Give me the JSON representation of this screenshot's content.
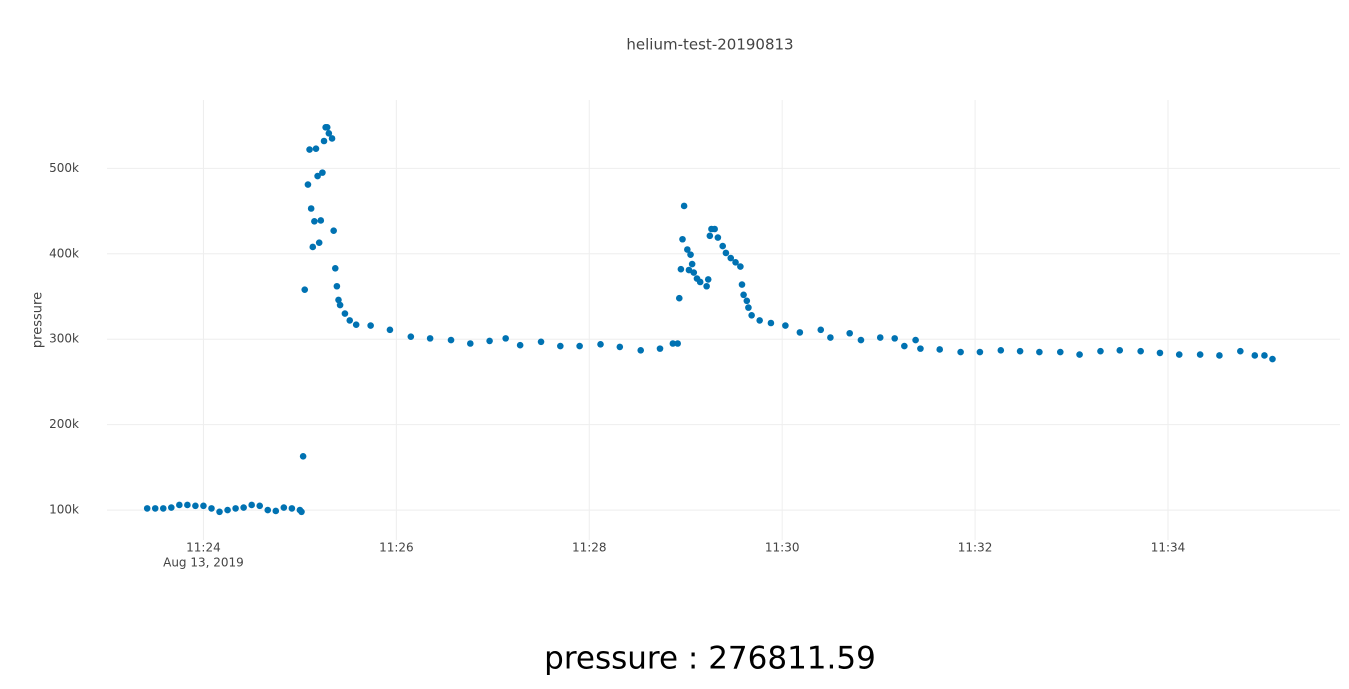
{
  "chart_data": {
    "type": "scatter",
    "title": "helium-test-20190813",
    "y_label": "pressure",
    "x_date": "Aug 13, 2019",
    "annotation": "pressure : 276811.59",
    "color": "#0072b2",
    "grid": true,
    "xlim": [
      "11:23:00",
      "11:35:47"
    ],
    "xticks": [
      "11:24",
      "11:26",
      "11:28",
      "11:30",
      "11:32",
      "11:34"
    ],
    "ylim": [
      65000,
      580000
    ],
    "yticks": [
      {
        "value": 100000,
        "label": "100k"
      },
      {
        "value": 200000,
        "label": "200k"
      },
      {
        "value": 300000,
        "label": "300k"
      },
      {
        "value": 400000,
        "label": "400k"
      },
      {
        "value": 500000,
        "label": "500k"
      }
    ],
    "x": [
      "11:23:25",
      "11:23:30",
      "11:23:35",
      "11:23:40",
      "11:23:45",
      "11:23:50",
      "11:23:55",
      "11:24:00",
      "11:24:05",
      "11:24:10",
      "11:24:15",
      "11:24:20",
      "11:24:25",
      "11:24:30",
      "11:24:35",
      "11:24:40",
      "11:24:45",
      "11:24:50",
      "11:24:55",
      "11:25:00",
      "11:25:01",
      "11:25:02",
      "11:25:03",
      "11:25:05",
      "11:25:06",
      "11:25:07",
      "11:25:08",
      "11:25:09",
      "11:25:10",
      "11:25:11",
      "11:25:12",
      "11:25:13",
      "11:25:14",
      "11:25:15",
      "11:25:16",
      "11:25:17",
      "11:25:18",
      "11:25:20",
      "11:25:21",
      "11:25:22",
      "11:25:23",
      "11:25:24",
      "11:25:25",
      "11:25:28",
      "11:25:31",
      "11:25:35",
      "11:25:44",
      "11:25:56",
      "11:26:09",
      "11:26:21",
      "11:26:34",
      "11:26:46",
      "11:26:58",
      "11:27:08",
      "11:27:17",
      "11:27:30",
      "11:27:42",
      "11:27:54",
      "11:28:07",
      "11:28:19",
      "11:28:32",
      "11:28:44",
      "11:28:52",
      "11:28:55",
      "11:28:56",
      "11:28:57",
      "11:28:58",
      "11:28:59",
      "11:29:01",
      "11:29:02",
      "11:29:03",
      "11:29:04",
      "11:29:05",
      "11:29:07",
      "11:29:09",
      "11:29:13",
      "11:29:14",
      "11:29:15",
      "11:29:16",
      "11:29:18",
      "11:29:20",
      "11:29:23",
      "11:29:25",
      "11:29:28",
      "11:29:31",
      "11:29:34",
      "11:29:35",
      "11:29:36",
      "11:29:38",
      "11:29:39",
      "11:29:41",
      "11:29:46",
      "11:29:53",
      "11:30:02",
      "11:30:11",
      "11:30:24",
      "11:30:30",
      "11:30:42",
      "11:30:49",
      "11:31:01",
      "11:31:10",
      "11:31:16",
      "11:31:23",
      "11:31:26",
      "11:31:38",
      "11:31:51",
      "11:32:03",
      "11:32:16",
      "11:32:28",
      "11:32:40",
      "11:32:53",
      "11:33:05",
      "11:33:18",
      "11:33:30",
      "11:33:43",
      "11:33:55",
      "11:34:07",
      "11:34:20",
      "11:34:32",
      "11:34:45",
      "11:34:54",
      "11:35:00",
      "11:35:05"
    ],
    "values": [
      102000,
      102000,
      102000,
      103000,
      106000,
      106000,
      105000,
      105000,
      102000,
      98000,
      100000,
      102000,
      103000,
      106000,
      105000,
      100000,
      99000,
      103000,
      102000,
      100000,
      98000,
      163000,
      358000,
      481000,
      522000,
      453000,
      408000,
      438000,
      523000,
      491000,
      413000,
      439000,
      495000,
      532000,
      548000,
      548000,
      541000,
      535000,
      427000,
      383000,
      362000,
      346000,
      340000,
      330000,
      322000,
      317000,
      316000,
      311000,
      303000,
      301000,
      299000,
      295000,
      298000,
      301000,
      293000,
      297000,
      292000,
      292000,
      294000,
      291000,
      287000,
      289000,
      295000,
      295000,
      348000,
      382000,
      417000,
      456000,
      405000,
      381000,
      399000,
      388000,
      378000,
      371000,
      367000,
      362000,
      370000,
      421000,
      429000,
      429000,
      419000,
      409000,
      401000,
      395000,
      390000,
      385000,
      364000,
      352000,
      345000,
      337000,
      328000,
      322000,
      319000,
      316000,
      308000,
      311000,
      302000,
      307000,
      299000,
      302000,
      301000,
      292000,
      299000,
      289000,
      288000,
      285000,
      285000,
      287000,
      286000,
      285000,
      285000,
      282000,
      286000,
      287000,
      286000,
      284000,
      282000,
      282000,
      281000,
      286000,
      281000,
      281000,
      276811.59
    ]
  }
}
